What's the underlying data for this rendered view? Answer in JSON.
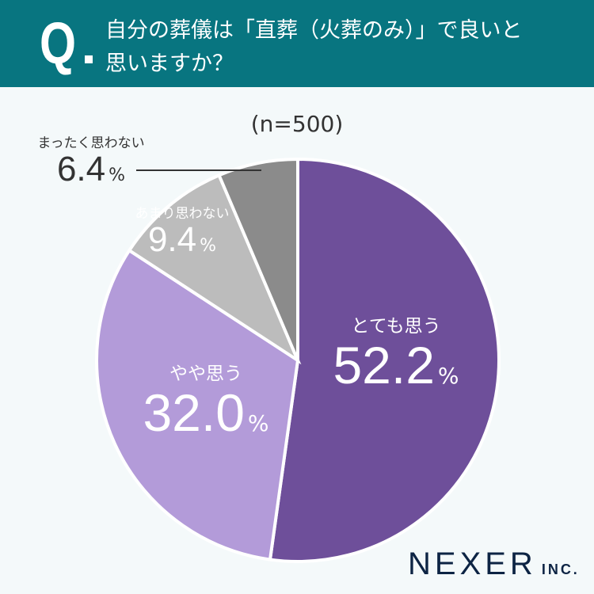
{
  "header": {
    "q": "Q",
    "title_line1": "自分の葬儀は「直葬（火葬のみ）」で良いと",
    "title_line2": "思いますか？"
  },
  "sample": "(n=500)",
  "logo": {
    "name": "NEXER",
    "suffix": "INC."
  },
  "chart_data": {
    "type": "pie",
    "title": "自分の葬儀は「直葬（火葬のみ）」で良いと思いますか？",
    "n": "(n=500)",
    "unit": "%",
    "slices": [
      {
        "label": "とても思う",
        "value": 52.2,
        "display": "52.2",
        "color": "#6e4f9a"
      },
      {
        "label": "やや思う",
        "value": 32.0,
        "display": "32.0",
        "color": "#b39bd9"
      },
      {
        "label": "あまり思わない",
        "value": 9.4,
        "display": "9.4",
        "color": "#bcbcbc"
      },
      {
        "label": "まったく思わない",
        "value": 6.4,
        "display": "6.4",
        "color": "#8b8b8b"
      }
    ]
  }
}
